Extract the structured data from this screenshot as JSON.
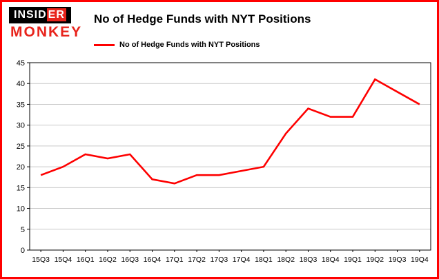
{
  "logo": {
    "insider_black": "INSID",
    "insider_red": "ER",
    "monkey": "MONKEY"
  },
  "header": {
    "title": "No of Hedge Funds with NYT Positions"
  },
  "legend": {
    "label": "No of Hedge Funds with NYT Positions",
    "color": "#fe0000"
  },
  "chart_data": {
    "type": "line",
    "title": "No of Hedge Funds with NYT Positions",
    "categories": [
      "15Q3",
      "15Q4",
      "16Q1",
      "16Q2",
      "16Q3",
      "16Q4",
      "17Q1",
      "17Q2",
      "17Q3",
      "17Q4",
      "18Q1",
      "18Q2",
      "18Q3",
      "18Q4",
      "19Q1",
      "19Q2",
      "19Q3",
      "19Q4"
    ],
    "series": [
      {
        "name": "No of Hedge Funds with NYT Positions",
        "color": "#fe0000",
        "values": [
          18,
          20,
          23,
          22,
          23,
          17,
          16,
          18,
          18,
          19,
          20,
          28,
          34,
          32,
          32,
          41,
          38,
          35
        ]
      }
    ],
    "xlabel": "",
    "ylabel": "",
    "ylim": [
      0,
      45
    ],
    "ytick_step": 5,
    "grid": true,
    "legend_position": "top-left"
  },
  "colors": {
    "frame": "#ff0000",
    "background": "#ffffff",
    "grid": "#c9c9c9",
    "axis": "#000000",
    "logo_red": "#e8241c"
  }
}
